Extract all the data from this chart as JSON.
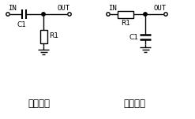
{
  "bg_color": "#ffffff",
  "line_color": "#000000",
  "title_left": "高通滤波",
  "title_right": "低通滤波",
  "label_in": "IN",
  "label_out": "OUT",
  "label_c1_left": "C1",
  "label_r1_left": "R1",
  "label_r1_right": "R1",
  "label_c1_right": "C1",
  "font_size_label": 6.5,
  "font_size_title": 8.5,
  "lw": 1.0
}
